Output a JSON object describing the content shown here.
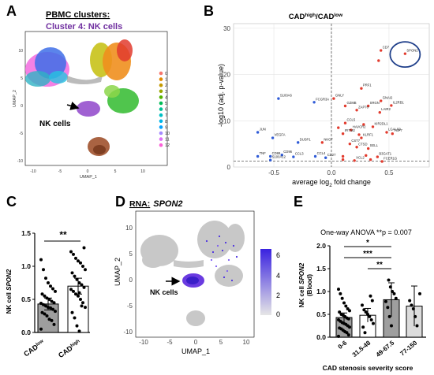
{
  "colors": {
    "purple": "#7030a0",
    "blue": "#1f4e9c",
    "red": "#e8262b",
    "dot_blue": "#2f5bd7",
    "dot_red": "#e23b2e",
    "grey_dot": "#bfbfbf",
    "bar_grey": "#9e9e9e",
    "bar_light": "#dcdcdc"
  },
  "panels": {
    "A": {
      "letter": "A",
      "title": "PBMC clusters:",
      "subtitle": "Cluster 4: NK cells",
      "annotation": "NK cells",
      "xlabel": "UMAP_1",
      "ylabel": "UMAP_2",
      "xticks": [
        "-10",
        "-5",
        "0",
        "5",
        "10"
      ],
      "yticks": [
        "10",
        "5",
        "0",
        "-5",
        "-10"
      ],
      "legend": [
        {
          "label": "0",
          "color": "#f8766d"
        },
        {
          "label": "1",
          "color": "#e38900"
        },
        {
          "label": "2",
          "color": "#c49a00"
        },
        {
          "label": "3",
          "color": "#99a800"
        },
        {
          "label": "4",
          "color": "#53b400"
        },
        {
          "label": "5",
          "color": "#00bc56"
        },
        {
          "label": "6",
          "color": "#00c094"
        },
        {
          "label": "7",
          "color": "#00bfc4"
        },
        {
          "label": "8",
          "color": "#00b6eb"
        },
        {
          "label": "9",
          "color": "#06a4ff"
        },
        {
          "label": "10",
          "color": "#a58aff"
        },
        {
          "label": "11",
          "color": "#df70f8"
        },
        {
          "label": "12",
          "color": "#fb61d7"
        }
      ]
    },
    "B": {
      "letter": "B",
      "title_main": "CAD",
      "title_sup1": "high",
      "title_sep": "/CAD",
      "title_sup2": "low",
      "ylabel": "-log10 (adj. p-value)",
      "xlabel_pre": "average log",
      "xlabel_sub": "2",
      "xlabel_post": " fold change"
    },
    "C": {
      "letter": "C",
      "ylabel_pre": "NK cell ",
      "ylabel_gene": "SPON2",
      "sig": "**",
      "cat1_main": "CAD",
      "cat1_sup": "low",
      "cat2_main": "CAD",
      "cat2_sup": "high"
    },
    "D": {
      "letter": "D",
      "title_pre": "RNA:",
      "title_gene": "SPON2",
      "annotation": "NK cells",
      "xlabel": "UMAP_1",
      "ylabel": "UMAP_2",
      "colorbar_ticks": [
        "6",
        "4",
        "2",
        "0"
      ]
    },
    "E": {
      "letter": "E",
      "anova": "One-way ANOVA **p = 0.007",
      "ylabel_pre": "NK cell ",
      "ylabel_gene": "SPON2",
      "ylabel_paren": "(Blood)",
      "xlabel": "CAD stenosis severity score",
      "sig": [
        "*",
        "***",
        "**"
      ]
    }
  },
  "chart_data": [
    {
      "type": "scatter",
      "panel": "B",
      "xlim": [
        -0.85,
        0.85
      ],
      "ylim": [
        0,
        31
      ],
      "xticks": [
        -0.5,
        0.0,
        0.5
      ],
      "yticks": [
        0,
        10,
        20,
        30
      ],
      "threshold_y": 1.3,
      "threshold_x": 0,
      "points": [
        {
          "gene": "SPON2",
          "x": 0.64,
          "y": 24.5,
          "color": "red"
        },
        {
          "gene": "CD7",
          "x": 0.43,
          "y": 25.2,
          "color": "red"
        },
        {
          "gene": "",
          "x": 0.41,
          "y": 23.0,
          "color": "red"
        },
        {
          "gene": "PRF1",
          "x": 0.26,
          "y": 17.0,
          "color": "red"
        },
        {
          "gene": "S100A6",
          "x": -0.46,
          "y": 14.8,
          "color": "blue"
        },
        {
          "gene": "FCGR3A",
          "x": -0.15,
          "y": 14.0,
          "color": "blue"
        },
        {
          "gene": "GNLY",
          "x": 0.02,
          "y": 14.8,
          "color": "red"
        },
        {
          "gene": "GNAI2",
          "x": 0.43,
          "y": 14.3,
          "color": "red"
        },
        {
          "gene": "GZMB",
          "x": 0.12,
          "y": 13.2,
          "color": "red"
        },
        {
          "gene": "SRGN",
          "x": 0.32,
          "y": 13.2,
          "color": "red"
        },
        {
          "gene": "IL2RB1",
          "x": 0.52,
          "y": 13.3,
          "color": "red"
        },
        {
          "gene": "ZAP70",
          "x": 0.22,
          "y": 12.3,
          "color": "red"
        },
        {
          "gene": "LAIR2",
          "x": 0.42,
          "y": 11.8,
          "color": "red"
        },
        {
          "gene": "CCL5",
          "x": 0.12,
          "y": 9.5,
          "color": "red"
        },
        {
          "gene": "RHOG",
          "x": 0.28,
          "y": 9.2,
          "color": "red"
        },
        {
          "gene": "PRF1",
          "x": 0.06,
          "y": 8.5,
          "color": "red"
        },
        {
          "gene": "HAVCR2",
          "x": 0.17,
          "y": 8.0,
          "color": "red"
        },
        {
          "gene": "KIR2DL1",
          "x": 0.36,
          "y": 8.7,
          "color": "red"
        },
        {
          "gene": "IFITM2",
          "x": 0.1,
          "y": 7.2,
          "color": "red"
        },
        {
          "gene": "CD81",
          "x": 0.24,
          "y": 7.0,
          "color": "red"
        },
        {
          "gene": "KLRF1",
          "x": 0.26,
          "y": 6.3,
          "color": "red"
        },
        {
          "gene": "LGALS9",
          "x": 0.48,
          "y": 7.5,
          "color": "red"
        },
        {
          "gene": "TCF7",
          "x": 0.53,
          "y": 7.2,
          "color": "red"
        },
        {
          "gene": "JUN",
          "x": -0.64,
          "y": 7.5,
          "color": "blue"
        },
        {
          "gene": "VEGFA",
          "x": -0.51,
          "y": 6.3,
          "color": "blue"
        },
        {
          "gene": "DUSP1",
          "x": -0.29,
          "y": 5.3,
          "color": "blue"
        },
        {
          "gene": "NKG7",
          "x": -0.08,
          "y": 5.3,
          "color": "red"
        },
        {
          "gene": "CST7",
          "x": 0.16,
          "y": 5.0,
          "color": "red"
        },
        {
          "gene": "CTSD",
          "x": 0.22,
          "y": 4.3,
          "color": "red"
        },
        {
          "gene": "SELL",
          "x": 0.32,
          "y": 4.0,
          "color": "red"
        },
        {
          "gene": "TNF",
          "x": -0.64,
          "y": 2.3,
          "color": "blue"
        },
        {
          "gene": "CD69",
          "x": -0.53,
          "y": 2.3,
          "color": "blue"
        },
        {
          "gene": "CD96",
          "x": -0.43,
          "y": 2.6,
          "color": "blue"
        },
        {
          "gene": "S100A12",
          "x": -0.53,
          "y": 1.5,
          "color": "blue"
        },
        {
          "gene": "CCL3",
          "x": -0.33,
          "y": 2.2,
          "color": "blue"
        },
        {
          "gene": "CCL4",
          "x": -0.14,
          "y": 2.3,
          "color": "blue"
        },
        {
          "gene": "CD27",
          "x": -0.05,
          "y": 2.0,
          "color": "blue"
        },
        {
          "gene": "CTSW",
          "x": 0.1,
          "y": 2.3,
          "color": "red"
        },
        {
          "gene": "IL2RG",
          "x": 0.3,
          "y": 2.5,
          "color": "red"
        },
        {
          "gene": "B3GAT1",
          "x": 0.4,
          "y": 2.2,
          "color": "red"
        },
        {
          "gene": "CD247",
          "x": 0.1,
          "y": 1.6,
          "color": "red"
        },
        {
          "gene": "XCL2",
          "x": 0.2,
          "y": 1.4,
          "color": "red"
        },
        {
          "gene": "SH2D1B",
          "x": 0.34,
          "y": 1.6,
          "color": "red"
        },
        {
          "gene": "FCER1G",
          "x": 0.44,
          "y": 1.2,
          "color": "red"
        }
      ],
      "labels": [
        {
          "text": "SPON2",
          "x": 0.64,
          "y": 24.5
        },
        {
          "text": "CD7",
          "x": 0.43,
          "y": 25.2
        },
        {
          "text": "PRF1",
          "x": 0.26,
          "y": 17.0
        },
        {
          "text": "S100A6",
          "x": -0.46,
          "y": 14.8
        },
        {
          "text": "FCGR3A",
          "x": -0.15,
          "y": 14.0
        },
        {
          "text": "GNLY",
          "x": 0.02,
          "y": 14.8
        },
        {
          "text": "GNAI2",
          "x": 0.43,
          "y": 14.3
        },
        {
          "text": "GZMB",
          "x": 0.12,
          "y": 13.2
        },
        {
          "text": "SRGN",
          "x": 0.32,
          "y": 13.2
        },
        {
          "text": "IL2RB1",
          "x": 0.52,
          "y": 13.3
        },
        {
          "text": "ZAP70",
          "x": 0.22,
          "y": 12.3
        },
        {
          "text": "LAIR2",
          "x": 0.42,
          "y": 11.8
        },
        {
          "text": "CCL5",
          "x": 0.12,
          "y": 9.5
        },
        {
          "text": "KIR2DL1",
          "x": 0.36,
          "y": 8.7
        },
        {
          "text": "HAVCR2",
          "x": 0.17,
          "y": 8.0
        },
        {
          "text": "LGALS9",
          "x": 0.48,
          "y": 7.5
        },
        {
          "text": "TCF7",
          "x": 0.53,
          "y": 7.2
        },
        {
          "text": "IFITM2",
          "x": 0.1,
          "y": 7.2
        },
        {
          "text": "KLRF1",
          "x": 0.26,
          "y": 6.3
        },
        {
          "text": "JUN",
          "x": -0.64,
          "y": 7.5
        },
        {
          "text": "VEGFA",
          "x": -0.51,
          "y": 6.3
        },
        {
          "text": "DUSP1",
          "x": -0.29,
          "y": 5.3
        },
        {
          "text": "NKG7",
          "x": -0.08,
          "y": 5.3
        },
        {
          "text": "CST7",
          "x": 0.16,
          "y": 5.0
        },
        {
          "text": "CTSD",
          "x": 0.22,
          "y": 4.3
        },
        {
          "text": "SELL",
          "x": 0.32,
          "y": 4.0
        },
        {
          "text": "TNF",
          "x": -0.64,
          "y": 2.3
        },
        {
          "text": "CD69",
          "x": -0.53,
          "y": 2.3
        },
        {
          "text": "CD96",
          "x": -0.43,
          "y": 2.6
        },
        {
          "text": "S100A12",
          "x": -0.53,
          "y": 1.5
        },
        {
          "text": "CCL3",
          "x": -0.33,
          "y": 2.2
        },
        {
          "text": "CCL4",
          "x": -0.14,
          "y": 2.3
        },
        {
          "text": "CD27",
          "x": -0.05,
          "y": 2.0
        },
        {
          "text": "XCL2",
          "x": 0.2,
          "y": 1.4
        },
        {
          "text": "B3GAT1",
          "x": 0.4,
          "y": 2.2
        },
        {
          "text": "FCER1G",
          "x": 0.44,
          "y": 1.2
        }
      ],
      "highlight": "SPON2"
    },
    {
      "type": "bar",
      "panel": "C",
      "ylim": [
        0,
        1.5
      ],
      "yticks": [
        "0.0",
        "0.5",
        "1.0",
        "1.5"
      ],
      "categories": [
        "CADlow",
        "CADhigh"
      ],
      "values": [
        0.43,
        0.7
      ],
      "errors": [
        0.09,
        0.12
      ],
      "points": [
        [
          0.05,
          0.12,
          0.18,
          0.2,
          0.25,
          0.28,
          0.3,
          0.32,
          0.35,
          0.37,
          0.38,
          0.4,
          0.42,
          0.44,
          0.45,
          0.47,
          0.5,
          0.52,
          0.55,
          0.58,
          0.62,
          0.66,
          0.7,
          0.75,
          0.82,
          0.95,
          1.1
        ],
        [
          0.02,
          0.1,
          0.22,
          0.3,
          0.38,
          0.45,
          0.5,
          0.55,
          0.58,
          0.62,
          0.65,
          0.68,
          0.72,
          0.75,
          0.8,
          0.85,
          0.9,
          0.95,
          1.0,
          1.05,
          1.08,
          1.12,
          1.18,
          1.22,
          1.28,
          0.4,
          0.6
        ]
      ]
    },
    {
      "type": "bar",
      "panel": "E",
      "ylim": [
        0,
        2.0
      ],
      "yticks": [
        "0.0",
        "0.5",
        "1.0",
        "1.5",
        "2.0"
      ],
      "categories": [
        "0-6",
        "31.5-48",
        "49-67.5",
        "77-150"
      ],
      "values": [
        0.43,
        0.48,
        0.82,
        0.68
      ],
      "errors": [
        0.1,
        0.15,
        0.37,
        0.44
      ],
      "points": [
        [
          0.02,
          0.05,
          0.1,
          0.12,
          0.15,
          0.18,
          0.2,
          0.22,
          0.25,
          0.28,
          0.3,
          0.32,
          0.35,
          0.38,
          0.4,
          0.42,
          0.45,
          0.48,
          0.5,
          0.55,
          0.58,
          0.62,
          0.68,
          0.75,
          0.85,
          0.95,
          1.05
        ],
        [
          0.1,
          0.22,
          0.3,
          0.38,
          0.45,
          0.5,
          0.55,
          0.6,
          0.7,
          0.8,
          0.9
        ],
        [
          0.25,
          0.45,
          0.65,
          0.78,
          0.85,
          0.95,
          1.0,
          1.1,
          1.25
        ],
        [
          0.25,
          0.45,
          0.62,
          0.7,
          0.8,
          0.95
        ]
      ],
      "bar_fills": [
        "#9e9e9e",
        "#ffffff",
        "#9e9e9e",
        "#dcdcdc"
      ]
    }
  ]
}
